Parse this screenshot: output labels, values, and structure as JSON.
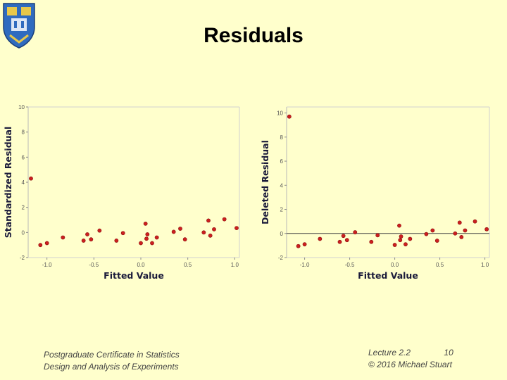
{
  "title": "Residuals",
  "footer": {
    "left_line1": "Postgraduate Certificate in Statistics",
    "left_line2": "Design and Analysis of Experiments",
    "right_line1": "Lecture 2.2",
    "page_number": "10",
    "right_line2": "© 2016 Michael Stuart"
  },
  "colors": {
    "background": "#ffffcc",
    "marker": "#cc1f1f",
    "crest_blue": "#2f6bbf",
    "crest_gold": "#e8c84a"
  },
  "icons": [
    "university-crest-logo"
  ],
  "chart_data": [
    {
      "type": "scatter",
      "xlabel": "Fitted Value",
      "ylabel": "Standardized Residual",
      "xticks": [
        "-1.0",
        "-0.5",
        "0.0",
        "0.5",
        "1.0"
      ],
      "xtick_values": [
        -1.0,
        -0.5,
        0.0,
        0.5,
        1.0
      ],
      "yticks": [
        "-2",
        "0",
        "2",
        "4",
        "6",
        "8",
        "10"
      ],
      "ytick_values": [
        -2,
        0,
        2,
        4,
        6,
        8,
        10
      ],
      "xlim": [
        -1.2,
        1.05
      ],
      "ylim": [
        -2,
        10
      ],
      "reference_line": null,
      "points": [
        {
          "x": -1.17,
          "y": 4.3
        },
        {
          "x": -1.07,
          "y": -1.0
        },
        {
          "x": -1.0,
          "y": -0.85
        },
        {
          "x": -0.83,
          "y": -0.4
        },
        {
          "x": -0.61,
          "y": -0.65
        },
        {
          "x": -0.57,
          "y": -0.15
        },
        {
          "x": -0.53,
          "y": -0.55
        },
        {
          "x": -0.44,
          "y": 0.15
        },
        {
          "x": -0.26,
          "y": -0.65
        },
        {
          "x": -0.19,
          "y": -0.05
        },
        {
          "x": 0.0,
          "y": -0.85
        },
        {
          "x": 0.05,
          "y": 0.7
        },
        {
          "x": 0.06,
          "y": -0.5
        },
        {
          "x": 0.07,
          "y": -0.15
        },
        {
          "x": 0.12,
          "y": -0.85
        },
        {
          "x": 0.17,
          "y": -0.4
        },
        {
          "x": 0.35,
          "y": 0.05
        },
        {
          "x": 0.42,
          "y": 0.3
        },
        {
          "x": 0.47,
          "y": -0.55
        },
        {
          "x": 0.67,
          "y": 0.0
        },
        {
          "x": 0.72,
          "y": 0.95
        },
        {
          "x": 0.74,
          "y": -0.25
        },
        {
          "x": 0.78,
          "y": 0.25
        },
        {
          "x": 0.89,
          "y": 1.05
        },
        {
          "x": 1.02,
          "y": 0.35
        }
      ]
    },
    {
      "type": "scatter",
      "xlabel": "Fitted Value",
      "ylabel": "Deleted Residual",
      "xticks": [
        "-1.0",
        "-0.5",
        "0.0",
        "0.5",
        "1.0"
      ],
      "xtick_values": [
        -1.0,
        -0.5,
        0.0,
        0.5,
        1.0
      ],
      "yticks": [
        "-2",
        "0",
        "2",
        "4",
        "6",
        "8",
        "10"
      ],
      "ytick_values": [
        -2,
        0,
        2,
        4,
        6,
        8,
        10
      ],
      "xlim": [
        -1.2,
        1.05
      ],
      "ylim": [
        -2,
        10.5
      ],
      "reference_line": 0,
      "points": [
        {
          "x": -1.17,
          "y": 9.7
        },
        {
          "x": -1.07,
          "y": -1.05
        },
        {
          "x": -1.0,
          "y": -0.9
        },
        {
          "x": -0.83,
          "y": -0.45
        },
        {
          "x": -0.61,
          "y": -0.7
        },
        {
          "x": -0.57,
          "y": -0.2
        },
        {
          "x": -0.53,
          "y": -0.55
        },
        {
          "x": -0.44,
          "y": 0.1
        },
        {
          "x": -0.26,
          "y": -0.7
        },
        {
          "x": -0.19,
          "y": -0.15
        },
        {
          "x": 0.0,
          "y": -0.95
        },
        {
          "x": 0.05,
          "y": 0.65
        },
        {
          "x": 0.06,
          "y": -0.55
        },
        {
          "x": 0.07,
          "y": -0.25
        },
        {
          "x": 0.12,
          "y": -0.9
        },
        {
          "x": 0.17,
          "y": -0.45
        },
        {
          "x": 0.35,
          "y": -0.05
        },
        {
          "x": 0.42,
          "y": 0.25
        },
        {
          "x": 0.47,
          "y": -0.6
        },
        {
          "x": 0.67,
          "y": 0.0
        },
        {
          "x": 0.72,
          "y": 0.9
        },
        {
          "x": 0.74,
          "y": -0.3
        },
        {
          "x": 0.78,
          "y": 0.25
        },
        {
          "x": 0.89,
          "y": 1.0
        },
        {
          "x": 1.02,
          "y": 0.35
        }
      ]
    }
  ]
}
